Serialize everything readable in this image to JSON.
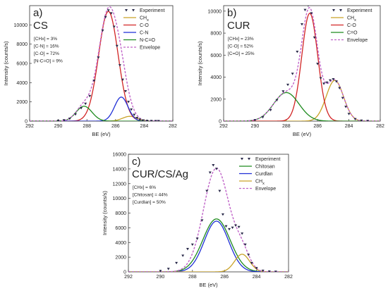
{
  "chart_data": [
    {
      "type": "line",
      "panel_label": "a)",
      "sample": "CS",
      "xlabel": "BE (eV)",
      "ylabel": "Intensity (counts/s)",
      "xlim": [
        292,
        282
      ],
      "ylim": [
        0,
        12000
      ],
      "x_ticks": [
        "292",
        "290",
        "288",
        "286",
        "284",
        "282"
      ],
      "y_ticks": [
        "0",
        "2000",
        "4000",
        "6000",
        "8000",
        "10000"
      ],
      "composition": [
        "[CHx] = 3%",
        "[C-N] = 16%",
        "[C-O] = 72%",
        "[N-C=O] = 9%"
      ],
      "legend_position": "top-right",
      "series": [
        {
          "name": "Experiment",
          "kind": "points",
          "color": "#2a2a4a",
          "x": [
            290.0,
            289.6,
            289.2,
            288.8,
            288.4,
            288.1,
            287.8,
            287.5,
            287.2,
            286.9,
            286.7,
            286.5,
            286.3,
            286.1,
            285.9,
            285.7,
            285.5,
            285.3,
            285.1,
            284.9,
            284.7,
            284.5,
            284.3,
            284.1,
            283.8,
            283.5,
            283.2,
            283.0
          ],
          "y": [
            30,
            80,
            250,
            700,
            1350,
            1800,
            2600,
            4200,
            6600,
            9400,
            10800,
            11500,
            11200,
            9800,
            7800,
            5800,
            4300,
            3100,
            2000,
            1200,
            650,
            320,
            150,
            70,
            30,
            10,
            5,
            0
          ]
        },
        {
          "name": "CHx",
          "label_sub": "x",
          "kind": "peak",
          "color": "#c9a227",
          "center": 285.0,
          "fwhm": 1.2,
          "height": 500
        },
        {
          "name": "C-O",
          "kind": "peak",
          "color": "#d12424",
          "center": 286.5,
          "fwhm": 1.6,
          "height": 11400
        },
        {
          "name": "C-N",
          "kind": "peak",
          "color": "#1f2fd6",
          "center": 285.6,
          "fwhm": 1.1,
          "height": 2500
        },
        {
          "name": "N-C=O",
          "kind": "peak",
          "color": "#1d8a1d",
          "center": 288.2,
          "fwhm": 1.3,
          "height": 1550
        },
        {
          "name": "Envelope",
          "kind": "envelope",
          "color": "#c063c8"
        }
      ]
    },
    {
      "type": "line",
      "panel_label": "b)",
      "sample": "CUR",
      "xlabel": "BE (eV)",
      "ylabel": "Intensity (counts/s)",
      "xlim": [
        292,
        282
      ],
      "ylim": [
        0,
        10500
      ],
      "x_ticks": [
        "292",
        "290",
        "288",
        "286",
        "284",
        "282"
      ],
      "y_ticks": [
        "0",
        "2000",
        "4000",
        "6000",
        "8000",
        "10000"
      ],
      "composition": [
        "[CHx] = 23%",
        "[C-O] = 52%",
        "[C=O] = 25%"
      ],
      "legend_position": "top-right",
      "series": [
        {
          "name": "Experiment",
          "kind": "points",
          "color": "#2a2a4a",
          "x": [
            290.0,
            289.5,
            289.0,
            288.6,
            288.2,
            287.9,
            287.6,
            287.3,
            287.0,
            286.8,
            286.6,
            286.4,
            286.2,
            286.0,
            285.8,
            285.6,
            285.4,
            285.2,
            285.0,
            284.8,
            284.6,
            284.4,
            284.2,
            284.0,
            283.6,
            283.2,
            282.8
          ],
          "y": [
            80,
            350,
            1000,
            1900,
            2700,
            3300,
            4300,
            6300,
            8800,
            10100,
            10500,
            9800,
            7600,
            5200,
            3900,
            3400,
            3500,
            3700,
            3800,
            3600,
            3000,
            2100,
            1300,
            650,
            180,
            40,
            10
          ]
        },
        {
          "name": "CHx",
          "label_sub": "x",
          "kind": "peak",
          "color": "#c9a227",
          "center": 284.9,
          "fwhm": 1.3,
          "height": 3700
        },
        {
          "name": "C-O",
          "kind": "peak",
          "color": "#d12424",
          "center": 286.5,
          "fwhm": 1.2,
          "height": 9800
        },
        {
          "name": "C=O",
          "kind": "peak",
          "color": "#1d8a1d",
          "center": 288.0,
          "fwhm": 1.9,
          "height": 2600
        },
        {
          "name": "Envelope",
          "kind": "envelope",
          "color": "#c063c8"
        }
      ]
    },
    {
      "type": "line",
      "panel_label": "c)",
      "sample": "CUR/CS/Ag",
      "xlabel": "BE (eV)",
      "ylabel": "Intensity (counts/s)",
      "xlim": [
        292,
        282
      ],
      "ylim": [
        0,
        16000
      ],
      "x_ticks": [
        "292",
        "290",
        "288",
        "286",
        "284",
        "282"
      ],
      "y_ticks": [
        "0",
        "2000",
        "4000",
        "6000",
        "8000",
        "10000",
        "12000",
        "14000",
        "16000"
      ],
      "composition": [
        "[CHx] = 6%",
        "[Chitosan] = 44%",
        "[Curdlan] = 50%"
      ],
      "legend_position": "top-right",
      "series": [
        {
          "name": "Experiment",
          "kind": "points",
          "color": "#2a2a4a",
          "x": [
            290.0,
            289.5,
            289.0,
            288.6,
            288.3,
            288.0,
            287.7,
            287.4,
            287.1,
            286.9,
            286.7,
            286.5,
            286.3,
            286.1,
            285.9,
            285.7,
            285.5,
            285.3,
            285.1,
            284.9,
            284.7,
            284.5,
            284.3,
            284.0,
            283.6,
            283.2,
            282.8
          ],
          "y": [
            100,
            400,
            1200,
            2200,
            3100,
            3700,
            4500,
            7000,
            11000,
            13500,
            14500,
            14000,
            11000,
            7800,
            6200,
            5800,
            6000,
            6300,
            6100,
            5200,
            3700,
            2300,
            1200,
            500,
            150,
            40,
            10
          ]
        },
        {
          "name": "Chitosan",
          "kind": "peak",
          "color": "#1d8a1d",
          "center": 286.5,
          "fwhm": 2.0,
          "height": 7200
        },
        {
          "name": "Curdlan",
          "kind": "peak",
          "color": "#1f2fd6",
          "center": 286.5,
          "fwhm": 1.8,
          "height": 6900
        },
        {
          "name": "CHx",
          "label_sub": "x",
          "kind": "peak",
          "color": "#c9a227",
          "center": 284.9,
          "fwhm": 1.1,
          "height": 2400
        },
        {
          "name": "Envelope",
          "kind": "envelope",
          "color": "#c063c8"
        }
      ]
    }
  ]
}
